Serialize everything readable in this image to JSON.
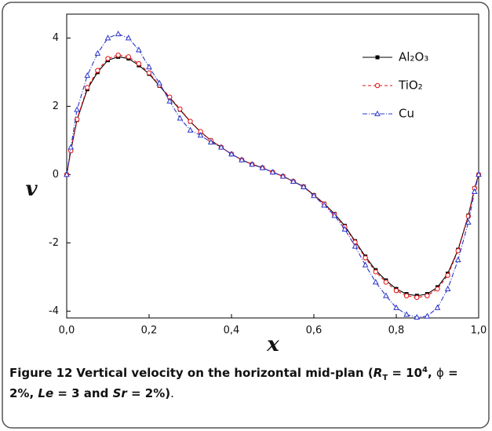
{
  "chart_data": {
    "type": "line",
    "x_label": "x",
    "y_label": "v",
    "x": [
      0,
      0.01,
      0.025,
      0.05,
      0.075,
      0.1,
      0.125,
      0.15,
      0.175,
      0.2,
      0.225,
      0.25,
      0.275,
      0.3,
      0.325,
      0.35,
      0.375,
      0.4,
      0.425,
      0.45,
      0.475,
      0.5,
      0.525,
      0.55,
      0.575,
      0.6,
      0.625,
      0.65,
      0.675,
      0.7,
      0.725,
      0.75,
      0.775,
      0.8,
      0.825,
      0.85,
      0.875,
      0.9,
      0.925,
      0.95,
      0.975,
      0.99,
      1
    ],
    "series": [
      {
        "name": "Al₂O₃",
        "color": "#000000",
        "marker": "square",
        "dash": "none",
        "values": [
          0,
          0.7,
          1.6,
          2.5,
          3.0,
          3.35,
          3.45,
          3.4,
          3.2,
          2.95,
          2.6,
          2.25,
          1.9,
          1.55,
          1.25,
          1.0,
          0.8,
          0.6,
          0.43,
          0.3,
          0.2,
          0.07,
          -0.05,
          -0.2,
          -0.35,
          -0.6,
          -0.85,
          -1.15,
          -1.5,
          -1.95,
          -2.4,
          -2.8,
          -3.1,
          -3.35,
          -3.5,
          -3.55,
          -3.5,
          -3.3,
          -2.9,
          -2.2,
          -1.2,
          -0.4,
          0
        ]
      },
      {
        "name": "TiO₂",
        "color": "#e01010",
        "marker": "circle",
        "dash": "4,3",
        "values": [
          0,
          0.7,
          1.62,
          2.55,
          3.05,
          3.4,
          3.5,
          3.45,
          3.25,
          2.98,
          2.62,
          2.27,
          1.92,
          1.56,
          1.26,
          1.0,
          0.8,
          0.6,
          0.43,
          0.3,
          0.2,
          0.07,
          -0.05,
          -0.2,
          -0.36,
          -0.61,
          -0.86,
          -1.17,
          -1.53,
          -1.98,
          -2.44,
          -2.85,
          -3.15,
          -3.4,
          -3.55,
          -3.6,
          -3.55,
          -3.35,
          -2.95,
          -2.23,
          -1.22,
          -0.4,
          0
        ]
      },
      {
        "name": "Cu",
        "color": "#2a35c8",
        "marker": "triangle",
        "dash": "6,2,1,2",
        "values": [
          0,
          0.8,
          1.9,
          2.9,
          3.55,
          4.0,
          4.12,
          4.0,
          3.65,
          3.15,
          2.68,
          2.15,
          1.65,
          1.3,
          1.15,
          0.95,
          0.8,
          0.6,
          0.43,
          0.3,
          0.2,
          0.07,
          -0.05,
          -0.2,
          -0.36,
          -0.62,
          -0.9,
          -1.2,
          -1.6,
          -2.1,
          -2.65,
          -3.15,
          -3.55,
          -3.9,
          -4.1,
          -4.18,
          -4.15,
          -3.9,
          -3.35,
          -2.5,
          -1.4,
          -0.5,
          0
        ]
      }
    ],
    "xlim": [
      0,
      1
    ],
    "ylim": [
      -4.2,
      4.7
    ],
    "xticks": [
      {
        "value": 0,
        "label": "0,0"
      },
      {
        "value": 0.2,
        "label": "0,2"
      },
      {
        "value": 0.4,
        "label": "0,4"
      },
      {
        "value": 0.6,
        "label": "0,6"
      },
      {
        "value": 0.8,
        "label": "0,8"
      },
      {
        "value": 1,
        "label": "1,0"
      }
    ],
    "yticks": [
      -4,
      -2,
      0,
      2,
      4
    ],
    "legend": "upper right",
    "caption": [
      "Figure 12",
      "Vertical velocity on the horizontal mid-plan (",
      "R",
      "T",
      " = 10",
      "4",
      ", ",
      "ϕ",
      " = 2%, ",
      "Le",
      " = 3 and ",
      "Sr",
      " = 2%)",
      "."
    ]
  }
}
